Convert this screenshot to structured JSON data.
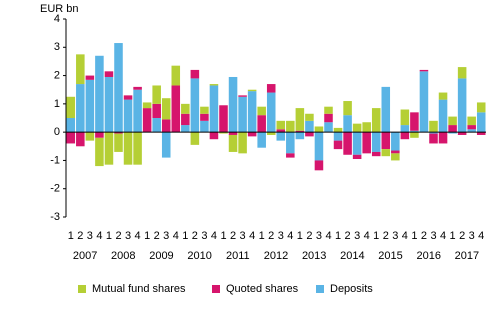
{
  "chart_data": {
    "type": "stacked-bar",
    "y_label": "EUR bn",
    "categories": [
      "1",
      "2",
      "3",
      "4",
      "1",
      "2",
      "3",
      "4",
      "1",
      "2",
      "3",
      "4",
      "1",
      "2",
      "3",
      "4",
      "1",
      "2",
      "3",
      "4",
      "1",
      "2",
      "3",
      "4",
      "1",
      "2",
      "3",
      "4",
      "1",
      "2",
      "3",
      "4",
      "1",
      "2",
      "3",
      "4",
      "1",
      "2",
      "3",
      "4",
      "1",
      "2",
      "3",
      "4"
    ],
    "years": [
      "2007",
      "2008",
      "2009",
      "2010",
      "2011",
      "2012",
      "2013",
      "2014",
      "2015",
      "2016",
      "2017"
    ],
    "series": [
      {
        "name": "Mutual fund shares",
        "color": "#b5cf35",
        "values": [
          0.75,
          1.05,
          -0.3,
          -1.0,
          -1.15,
          -0.65,
          -1.15,
          -1.15,
          0.2,
          0.65,
          0.75,
          0.7,
          0.35,
          -0.45,
          0.25,
          0.05,
          -0.05,
          -0.6,
          -0.75,
          0.05,
          0.3,
          -0.1,
          0.3,
          0.4,
          0.8,
          0.25,
          0.2,
          0.25,
          0.15,
          0.5,
          0.3,
          0.35,
          0.85,
          -0.25,
          -0.25,
          0.55,
          -0.2,
          0.0,
          0.4,
          0.25,
          0.3,
          0.4,
          0.3,
          0.35
        ]
      },
      {
        "name": "Quoted shares",
        "color": "#d6156c",
        "values": [
          -0.4,
          -0.5,
          0.15,
          -0.2,
          0.2,
          -0.05,
          0.15,
          0.1,
          0.85,
          0.5,
          0.45,
          1.65,
          0.4,
          0.3,
          0.25,
          -0.25,
          0.95,
          -0.1,
          0.05,
          -0.15,
          0.6,
          0.3,
          0.1,
          -0.15,
          0.05,
          -0.15,
          -0.35,
          0.3,
          -0.3,
          -0.8,
          -0.15,
          -0.75,
          -0.15,
          -0.6,
          -0.1,
          -0.25,
          0.65,
          0.05,
          -0.35,
          -0.4,
          0.25,
          -0.1,
          0.15,
          -0.1
        ]
      },
      {
        "name": "Deposits",
        "color": "#5ab4e5",
        "values": [
          0.5,
          1.7,
          1.85,
          2.7,
          1.95,
          3.15,
          1.15,
          1.5,
          0.0,
          0.5,
          -0.9,
          0.0,
          0.25,
          1.9,
          0.4,
          1.65,
          0.0,
          1.95,
          1.25,
          1.45,
          -0.55,
          1.4,
          -0.3,
          -0.75,
          -0.25,
          0.4,
          -1.0,
          0.35,
          -0.3,
          0.6,
          -0.8,
          0.0,
          -0.7,
          1.6,
          -0.65,
          0.25,
          0.05,
          2.15,
          -0.05,
          1.15,
          -0.05,
          1.9,
          0.1,
          0.7
        ]
      }
    ],
    "ylim": [
      -3,
      4
    ],
    "yticks": [
      -3,
      -2,
      -1,
      0,
      1,
      2,
      3,
      4
    ]
  }
}
